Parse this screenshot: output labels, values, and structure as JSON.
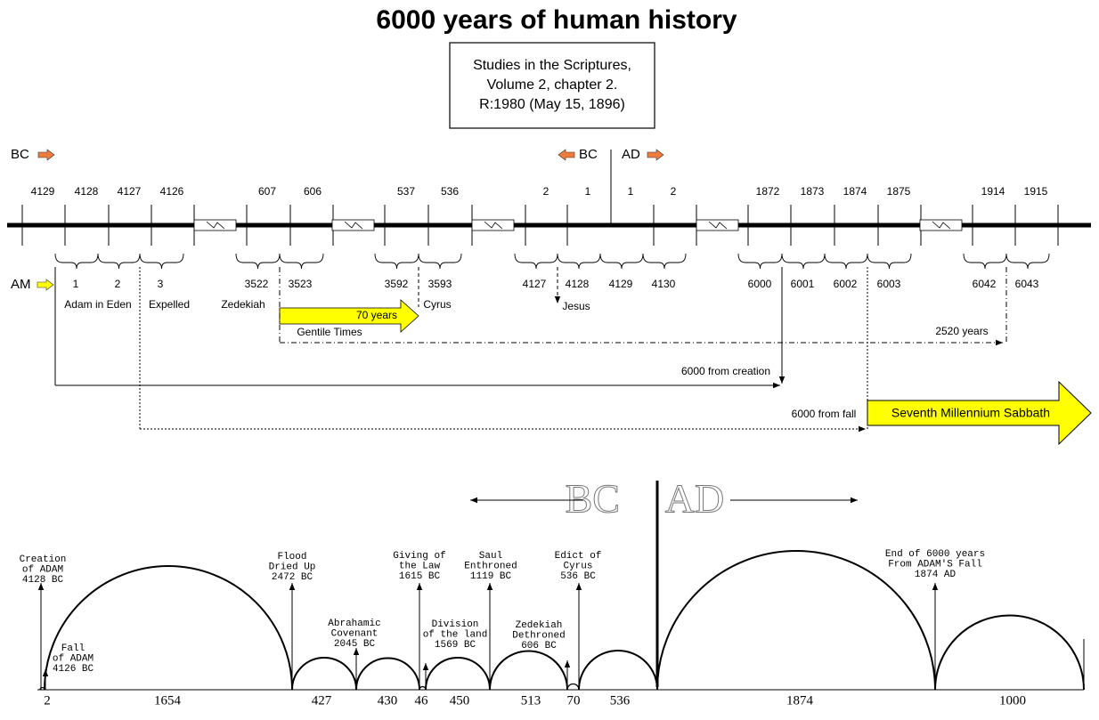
{
  "title": "6000 years of human history",
  "source": [
    "Studies in the Scriptures,",
    "Volume 2, chapter 2.",
    "R:1980 (May 15, 1896)"
  ],
  "era_markers": {
    "bc_left": "BC",
    "bc_mid": "BC",
    "ad_mid": "AD",
    "am": "AM"
  },
  "top_timeline": {
    "years": [
      4129,
      4128,
      4127,
      4126,
      607,
      606,
      537,
      536,
      2,
      1,
      1,
      2,
      1872,
      1873,
      1874,
      1875,
      1914,
      1915
    ],
    "am_years": [
      1,
      2,
      3,
      3522,
      3523,
      3592,
      3593,
      4127,
      4128,
      4129,
      4130,
      6000,
      6001,
      6002,
      6003,
      6042,
      6043
    ],
    "events": [
      "Adam in Eden",
      "Expelled",
      "Zedekiah",
      "Cyrus",
      "Jesus"
    ],
    "arrow_70": "70 years",
    "gentile_times": "Gentile Times",
    "years_2520": "2520 years",
    "from_creation": "6000 from creation",
    "from_fall": "6000 from fall",
    "sabbath": "Seventh Millennium Sabbath"
  },
  "bottom_chart": {
    "era_bc": "BC",
    "era_ad": "AD",
    "events": [
      {
        "lines": [
          "Creation",
          "of ADAM",
          "4128 BC"
        ]
      },
      {
        "lines": [
          "Fall",
          "of ADAM",
          "4126 BC"
        ]
      },
      {
        "lines": [
          "Flood",
          "Dried Up",
          "2472 BC"
        ]
      },
      {
        "lines": [
          "Abrahamic",
          "Covenant",
          "2045 BC"
        ]
      },
      {
        "lines": [
          "Giving of",
          "the Law",
          "1615 BC"
        ]
      },
      {
        "lines": [
          "Division",
          "of the land",
          "1569 BC"
        ]
      },
      {
        "lines": [
          "Saul",
          "Enthroned",
          "1119 BC"
        ]
      },
      {
        "lines": [
          "Zedekiah",
          "Dethroned",
          "606 BC"
        ]
      },
      {
        "lines": [
          "Edict of",
          "Cyrus",
          "536 BC"
        ]
      },
      {
        "lines": [
          "End of 6000 years",
          "From ADAM'S Fall",
          "1874 AD"
        ]
      }
    ],
    "spans": [
      2,
      1654,
      427,
      430,
      46,
      450,
      513,
      70,
      536,
      1874,
      1000
    ]
  }
}
